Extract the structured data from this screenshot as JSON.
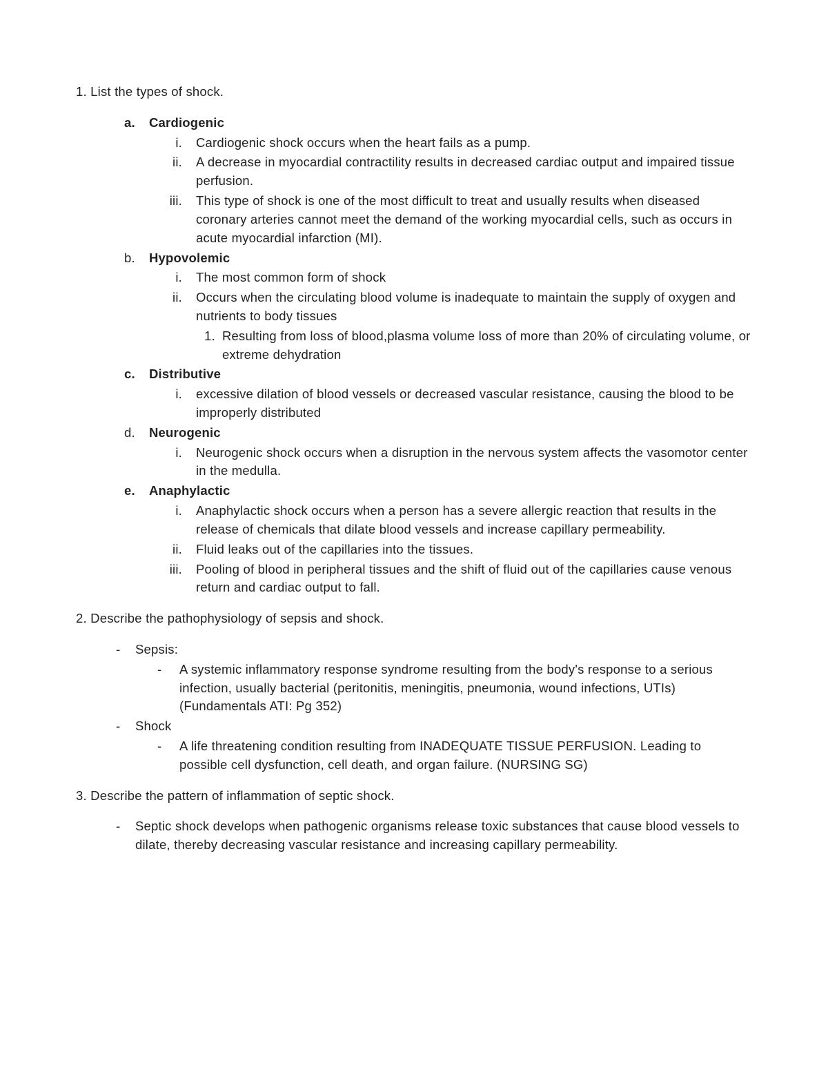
{
  "q1": {
    "prompt": "1. List the types of shock.",
    "items": [
      {
        "marker": "a.",
        "markerBold": true,
        "label": "Cardiogenic",
        "labelBold": true,
        "sub": [
          {
            "marker": "i.",
            "text": "Cardiogenic shock occurs when the heart fails as a pump."
          },
          {
            "marker": "ii.",
            "text": "A decrease in myocardial contractility results in decreased cardiac output and impaired tissue perfusion."
          },
          {
            "marker": "iii.",
            "text": "This type of shock is one of the most difficult to treat and usually results when diseased coronary arteries cannot meet the demand of the working myocardial cells, such as occurs in acute myocardial infarction (MI)."
          }
        ]
      },
      {
        "marker": "b.",
        "markerBold": false,
        "label": "Hypovolemic",
        "labelBold": true,
        "sub": [
          {
            "marker": "i.",
            "text": "The most common form of shock"
          },
          {
            "marker": "ii.",
            "text": "Occurs when the circulating blood volume is inadequate to maintain the supply of oxygen and nutrients to body tissues",
            "numSub": [
              {
                "marker": "1.",
                "text": "Resulting from loss of blood,plasma volume loss of more than 20% of circulating volume, or extreme dehydration"
              }
            ]
          }
        ]
      },
      {
        "marker": "c.",
        "markerBold": true,
        "label": "Distributive",
        "labelBold": true,
        "sub": [
          {
            "marker": "i.",
            "text": "excessive dilation of blood vessels or decreased vascular resistance, causing the blood to be improperly distributed"
          }
        ]
      },
      {
        "marker": "d.",
        "markerBold": false,
        "label": "Neurogenic",
        "labelBold": true,
        "sub": [
          {
            "marker": "i.",
            "text": "Neurogenic shock occurs when a disruption in the nervous system affects the vasomotor center in the medulla."
          }
        ]
      },
      {
        "marker": "e.",
        "markerBold": true,
        "label": "Anaphylactic",
        "labelBold": true,
        "sub": [
          {
            "marker": "i.",
            "text": "Anaphylactic shock occurs when a person has a severe allergic reaction that results in the release of chemicals that dilate blood vessels and increase capillary permeability."
          },
          {
            "marker": "ii.",
            "text": " Fluid leaks out of the capillaries into the tissues."
          },
          {
            "marker": "iii.",
            "text": " Pooling of blood in peripheral tissues and the shift of fluid out of the capillaries cause venous return and cardiac output to fall."
          }
        ]
      }
    ]
  },
  "q2": {
    "prompt": "2. Describe the pathophysiology of sepsis and shock.",
    "items": [
      {
        "label": "Sepsis:",
        "sub": [
          {
            "text": "A systemic inflammatory response syndrome resulting from the body's response to a serious infection, usually bacterial (peritonitis, meningitis, pneumonia, wound infections, UTIs) (Fundamentals ATI: Pg 352)"
          }
        ]
      },
      {
        "label": "Shock",
        "sub": [
          {
            "text": "A life threatening condition resulting from INADEQUATE TISSUE PERFUSION. Leading to possible cell dysfunction, cell death, and organ failure.  (NURSING SG)"
          }
        ]
      }
    ]
  },
  "q3": {
    "prompt": "3. Describe the pattern of inflammation of septic shock.",
    "items": [
      {
        "text": "Septic shock develops when pathogenic organisms release toxic substances that cause blood vessels to dilate, thereby decreasing vascular resistance and increasing capillary permeability."
      }
    ]
  },
  "dash": "-"
}
